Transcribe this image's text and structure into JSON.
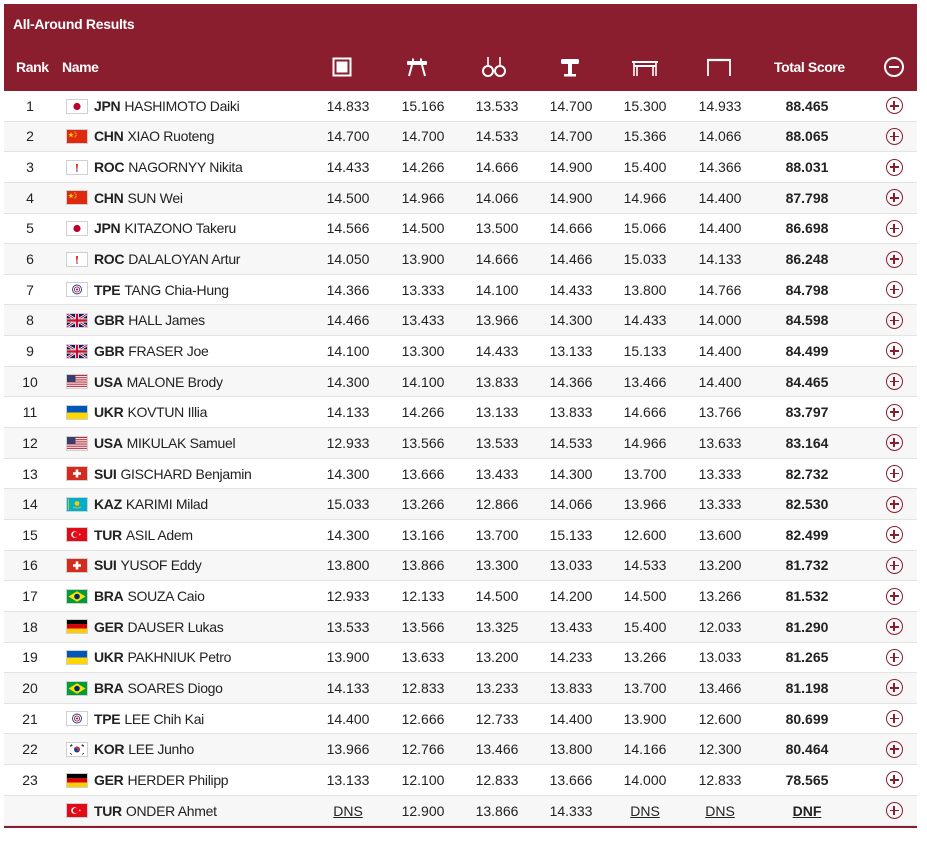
{
  "title": "All-Around Results",
  "headers": {
    "rank": "Rank",
    "name": "Name",
    "total": "Total Score"
  },
  "apparatus": [
    {
      "icon": "floor-icon"
    },
    {
      "icon": "pommel-horse-icon"
    },
    {
      "icon": "rings-icon"
    },
    {
      "icon": "vault-icon"
    },
    {
      "icon": "parallel-bars-icon"
    },
    {
      "icon": "horizontal-bar-icon"
    }
  ],
  "collapse_icon": "minus-circle-icon",
  "expand_icon": "plus-circle-icon",
  "flags": {
    "JPN": "japan-flag",
    "CHN": "china-flag",
    "ROC": "roc-flag",
    "TPE": "chinese-taipei-flag",
    "GBR": "great-britain-flag",
    "USA": "usa-flag",
    "UKR": "ukraine-flag",
    "SUI": "switzerland-flag",
    "KAZ": "kazakhstan-flag",
    "TUR": "turkey-flag",
    "BRA": "brazil-flag",
    "GER": "germany-flag",
    "KOR": "korea-flag"
  },
  "rows": [
    {
      "rank": "1",
      "noc": "JPN",
      "name": "HASHIMOTO Daiki",
      "scores": [
        "14.833",
        "15.166",
        "13.533",
        "14.700",
        "15.300",
        "14.933"
      ],
      "total": "88.465"
    },
    {
      "rank": "2",
      "noc": "CHN",
      "name": "XIAO Ruoteng",
      "scores": [
        "14.700",
        "14.700",
        "14.533",
        "14.700",
        "15.366",
        "14.066"
      ],
      "total": "88.065"
    },
    {
      "rank": "3",
      "noc": "ROC",
      "name": "NAGORNYY Nikita",
      "scores": [
        "14.433",
        "14.266",
        "14.666",
        "14.900",
        "15.400",
        "14.366"
      ],
      "total": "88.031"
    },
    {
      "rank": "4",
      "noc": "CHN",
      "name": "SUN Wei",
      "scores": [
        "14.500",
        "14.966",
        "14.066",
        "14.900",
        "14.966",
        "14.400"
      ],
      "total": "87.798"
    },
    {
      "rank": "5",
      "noc": "JPN",
      "name": "KITAZONO Takeru",
      "scores": [
        "14.566",
        "14.500",
        "13.500",
        "14.666",
        "15.066",
        "14.400"
      ],
      "total": "86.698"
    },
    {
      "rank": "6",
      "noc": "ROC",
      "name": "DALALOYAN Artur",
      "scores": [
        "14.050",
        "13.900",
        "14.666",
        "14.466",
        "15.033",
        "14.133"
      ],
      "total": "86.248"
    },
    {
      "rank": "7",
      "noc": "TPE",
      "name": "TANG Chia-Hung",
      "scores": [
        "14.366",
        "13.333",
        "14.100",
        "14.433",
        "13.800",
        "14.766"
      ],
      "total": "84.798"
    },
    {
      "rank": "8",
      "noc": "GBR",
      "name": "HALL James",
      "scores": [
        "14.466",
        "13.433",
        "13.966",
        "14.300",
        "14.433",
        "14.000"
      ],
      "total": "84.598"
    },
    {
      "rank": "9",
      "noc": "GBR",
      "name": "FRASER Joe",
      "scores": [
        "14.100",
        "13.300",
        "14.433",
        "13.133",
        "15.133",
        "14.400"
      ],
      "total": "84.499"
    },
    {
      "rank": "10",
      "noc": "USA",
      "name": "MALONE Brody",
      "scores": [
        "14.300",
        "14.100",
        "13.833",
        "14.366",
        "13.466",
        "14.400"
      ],
      "total": "84.465"
    },
    {
      "rank": "11",
      "noc": "UKR",
      "name": "KOVTUN Illia",
      "scores": [
        "14.133",
        "14.266",
        "13.133",
        "13.833",
        "14.666",
        "13.766"
      ],
      "total": "83.797"
    },
    {
      "rank": "12",
      "noc": "USA",
      "name": "MIKULAK Samuel",
      "scores": [
        "12.933",
        "13.566",
        "13.533",
        "14.533",
        "14.966",
        "13.633"
      ],
      "total": "83.164"
    },
    {
      "rank": "13",
      "noc": "SUI",
      "name": "GISCHARD Benjamin",
      "scores": [
        "14.300",
        "13.666",
        "13.433",
        "14.300",
        "13.700",
        "13.333"
      ],
      "total": "82.732"
    },
    {
      "rank": "14",
      "noc": "KAZ",
      "name": "KARIMI Milad",
      "scores": [
        "15.033",
        "13.266",
        "12.866",
        "14.066",
        "13.966",
        "13.333"
      ],
      "total": "82.530"
    },
    {
      "rank": "15",
      "noc": "TUR",
      "name": "ASIL Adem",
      "scores": [
        "14.300",
        "13.166",
        "13.700",
        "15.133",
        "12.600",
        "13.600"
      ],
      "total": "82.499"
    },
    {
      "rank": "16",
      "noc": "SUI",
      "name": "YUSOF Eddy",
      "scores": [
        "13.800",
        "13.866",
        "13.300",
        "13.033",
        "14.533",
        "13.200"
      ],
      "total": "81.732"
    },
    {
      "rank": "17",
      "noc": "BRA",
      "name": "SOUZA Caio",
      "scores": [
        "12.933",
        "12.133",
        "14.500",
        "14.200",
        "14.500",
        "13.266"
      ],
      "total": "81.532"
    },
    {
      "rank": "18",
      "noc": "GER",
      "name": "DAUSER Lukas",
      "scores": [
        "13.533",
        "13.566",
        "13.325",
        "13.433",
        "15.400",
        "12.033"
      ],
      "total": "81.290"
    },
    {
      "rank": "19",
      "noc": "UKR",
      "name": "PAKHNIUK Petro",
      "scores": [
        "13.900",
        "13.633",
        "13.200",
        "14.233",
        "13.266",
        "13.033"
      ],
      "total": "81.265"
    },
    {
      "rank": "20",
      "noc": "BRA",
      "name": "SOARES Diogo",
      "scores": [
        "14.133",
        "12.833",
        "13.233",
        "13.833",
        "13.700",
        "13.466"
      ],
      "total": "81.198"
    },
    {
      "rank": "21",
      "noc": "TPE",
      "name": "LEE Chih Kai",
      "scores": [
        "14.400",
        "12.666",
        "12.733",
        "14.400",
        "13.900",
        "12.600"
      ],
      "total": "80.699"
    },
    {
      "rank": "22",
      "noc": "KOR",
      "name": "LEE Junho",
      "scores": [
        "13.966",
        "12.766",
        "13.466",
        "13.800",
        "14.166",
        "12.300"
      ],
      "total": "80.464"
    },
    {
      "rank": "23",
      "noc": "GER",
      "name": "HERDER Philipp",
      "scores": [
        "13.133",
        "12.100",
        "12.833",
        "13.666",
        "14.000",
        "12.833"
      ],
      "total": "78.565"
    },
    {
      "rank": "",
      "noc": "TUR",
      "name": "ONDER Ahmet",
      "scores": [
        "DNS",
        "12.900",
        "13.866",
        "14.333",
        "DNS",
        "DNS"
      ],
      "total": "DNF"
    }
  ]
}
